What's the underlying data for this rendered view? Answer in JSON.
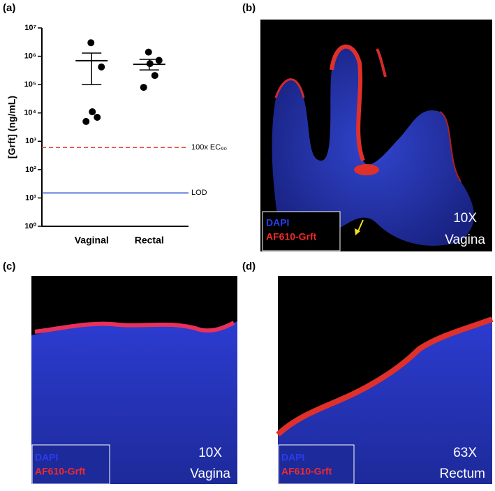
{
  "chart_data": {
    "type": "scatter",
    "panel_label": "(a)",
    "y_label": "[Grft] (ng/mL)",
    "log_scale": true,
    "categories": [
      "Vaginal",
      "Rectal"
    ],
    "groups": [
      {
        "values": [
          3000000,
          420000,
          11000,
          7000,
          5000
        ],
        "mean": 700000,
        "error_upper": 1300000,
        "error_lower": 100000
      },
      {
        "values": [
          1400000,
          720000,
          550000,
          210000,
          80000
        ],
        "mean": 520000,
        "error_upper": 780000,
        "error_lower": 330000
      }
    ],
    "color": "#000000",
    "ylim": [
      1,
      10000000
    ],
    "yticks": [
      {
        "value": 1,
        "label": "10⁰"
      },
      {
        "value": 10,
        "label": "10¹"
      },
      {
        "value": 100,
        "label": "10²"
      },
      {
        "value": 1000,
        "label": "10³"
      },
      {
        "value": 10000,
        "label": "10⁴"
      },
      {
        "value": 100000,
        "label": "10⁵"
      },
      {
        "value": 1000000,
        "label": "10⁶"
      },
      {
        "value": 10000000,
        "label": "10⁷"
      }
    ],
    "reference_lines": [
      {
        "label": "100x EC₉₀",
        "value": 600,
        "color": "#e8412b",
        "style": "dashed"
      },
      {
        "label": "LOD",
        "value": 15,
        "color": "#2a4fd0",
        "style": "solid"
      }
    ]
  },
  "panels": [
    {
      "label": "(b)",
      "legend": [
        "DAPI",
        "AF610-Grft"
      ],
      "magnification": "10X",
      "tissue": "Vagina"
    },
    {
      "label": "(c)",
      "legend": [
        "DAPI",
        "AF610-Grft"
      ],
      "magnification": "10X",
      "tissue": "Vagina"
    },
    {
      "label": "(d)",
      "legend": [
        "DAPI",
        "AF610-Grft"
      ],
      "magnification": "63X",
      "tissue": "Rectum"
    }
  ]
}
